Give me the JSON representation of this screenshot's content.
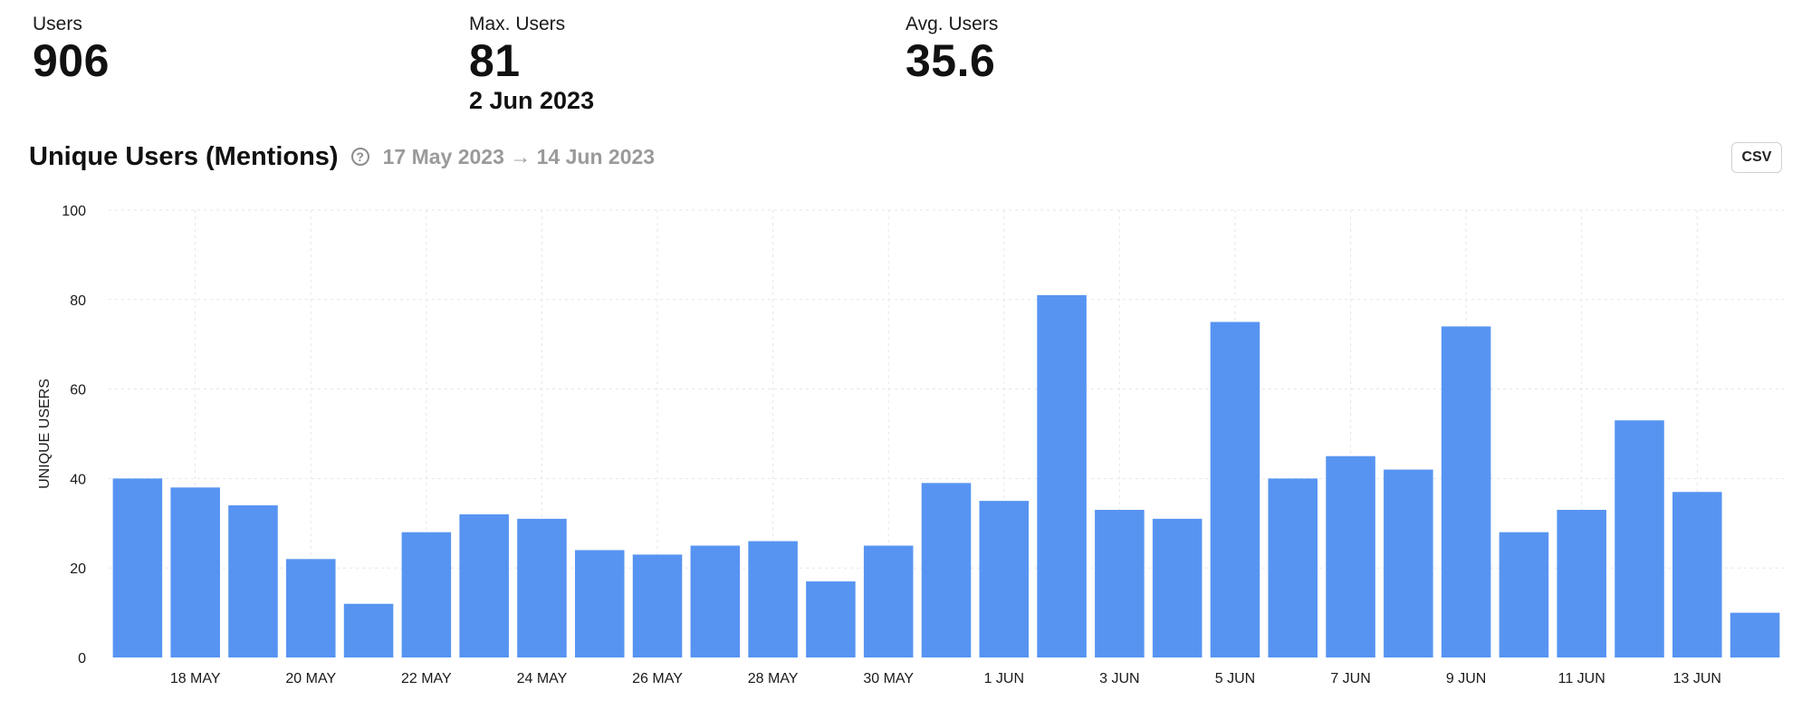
{
  "stats": {
    "users": {
      "label": "Users",
      "value": "906"
    },
    "max_users": {
      "label": "Max. Users",
      "value": "81",
      "date": "2 Jun 2023"
    },
    "avg_users": {
      "label": "Avg. Users",
      "value": "35.6"
    }
  },
  "chart_header": {
    "title": "Unique Users (Mentions)",
    "help_icon": "question-circle-icon",
    "date_range": "17 May 2023 → 14 Jun 2023",
    "csv_label": "CSV"
  },
  "colors": {
    "bar": "#5794f2",
    "grid": "#e6e6e6"
  },
  "chart_data": {
    "type": "bar",
    "title": "Unique Users (Mentions)",
    "xlabel": "",
    "ylabel": "UNIQUE USERS",
    "ylim": [
      0,
      100
    ],
    "yticks": [
      0,
      20,
      40,
      60,
      80,
      100
    ],
    "grid": true,
    "categories": [
      "17 May",
      "18 May",
      "19 May",
      "20 May",
      "21 May",
      "22 May",
      "23 May",
      "24 May",
      "25 May",
      "26 May",
      "27 May",
      "28 May",
      "29 May",
      "30 May",
      "31 May",
      "1 Jun",
      "2 Jun",
      "3 Jun",
      "4 Jun",
      "5 Jun",
      "6 Jun",
      "7 Jun",
      "8 Jun",
      "9 Jun",
      "10 Jun",
      "11 Jun",
      "12 Jun",
      "13 Jun",
      "14 Jun"
    ],
    "xtick_labels": [
      "",
      "18 MAY",
      "",
      "20 MAY",
      "",
      "22 MAY",
      "",
      "24 MAY",
      "",
      "26 MAY",
      "",
      "28 MAY",
      "",
      "30 MAY",
      "",
      "1 JUN",
      "",
      "3 JUN",
      "",
      "5 JUN",
      "",
      "7 JUN",
      "",
      "9 JUN",
      "",
      "11 JUN",
      "",
      "13 JUN",
      ""
    ],
    "values": [
      40,
      38,
      34,
      22,
      12,
      28,
      32,
      31,
      24,
      23,
      25,
      26,
      17,
      25,
      39,
      35,
      81,
      33,
      31,
      75,
      40,
      45,
      42,
      74,
      28,
      33,
      53,
      37,
      10
    ]
  }
}
